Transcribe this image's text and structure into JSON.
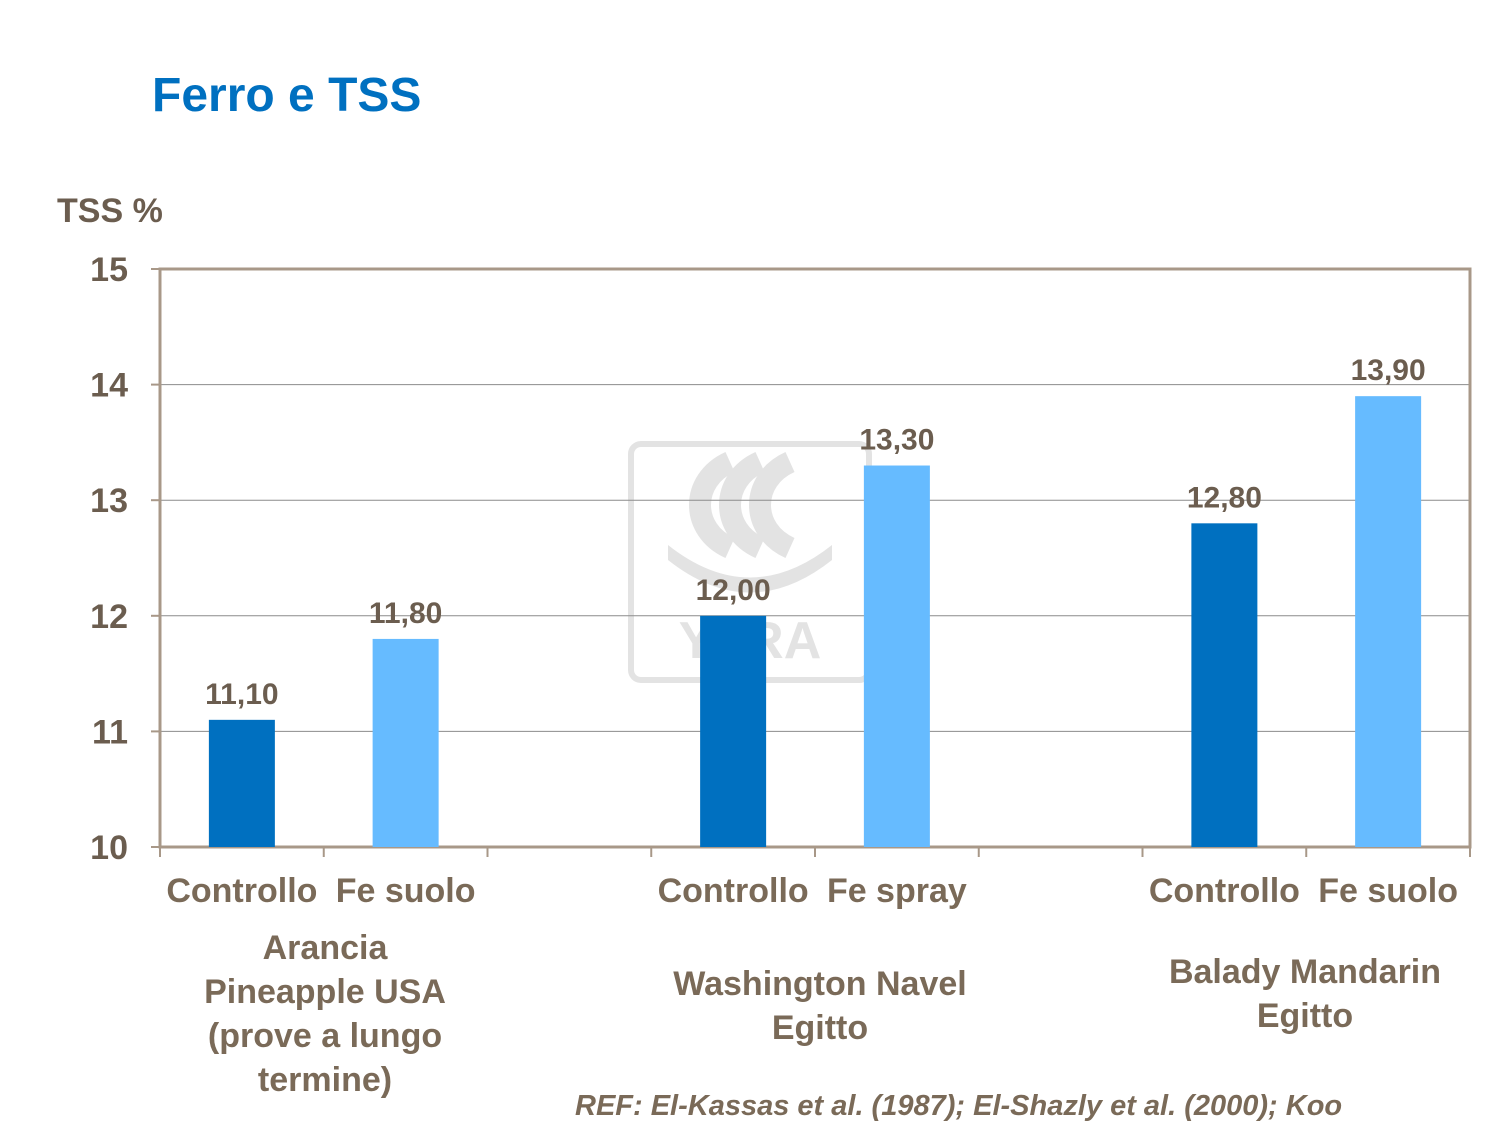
{
  "title": "Ferro e TSS",
  "colors": {
    "title": "#0070c0",
    "text": "#6b5d4f",
    "controllo": "#0070c0",
    "treatment": "#66bbff",
    "axis": "#a89888",
    "grid": "#8c8c8c",
    "watermark": "#e3e3e3"
  },
  "chart_data": {
    "type": "bar",
    "ylabel": "TSS %",
    "ylim": [
      10,
      15
    ],
    "yticks": [
      10,
      11,
      12,
      13,
      14,
      15
    ],
    "grid": true,
    "legend": "none",
    "categories": [
      "Controllo",
      "Fe suolo",
      "Controllo",
      "Fe spray",
      "Controllo",
      "Fe suolo"
    ],
    "values": [
      11.1,
      11.8,
      12.0,
      13.3,
      12.8,
      13.9
    ],
    "value_labels": [
      "11,10",
      "11,80",
      "12,00",
      "13,30",
      "12,80",
      "13,90"
    ],
    "bar_colors": [
      "#0070c0",
      "#66bbff",
      "#0070c0",
      "#66bbff",
      "#0070c0",
      "#66bbff"
    ],
    "groups": [
      {
        "lines": [
          "Arancia",
          "Pineapple USA",
          "(prove a lungo",
          "termine)"
        ]
      },
      {
        "lines": [
          "Washington Navel",
          "Egitto"
        ]
      },
      {
        "lines": [
          "Balady Mandarin",
          "Egitto"
        ]
      }
    ]
  },
  "watermark": "YARA",
  "reference": "REF: El-Kassas et al. (1987); El-Shazly et al. (2000); Koo"
}
